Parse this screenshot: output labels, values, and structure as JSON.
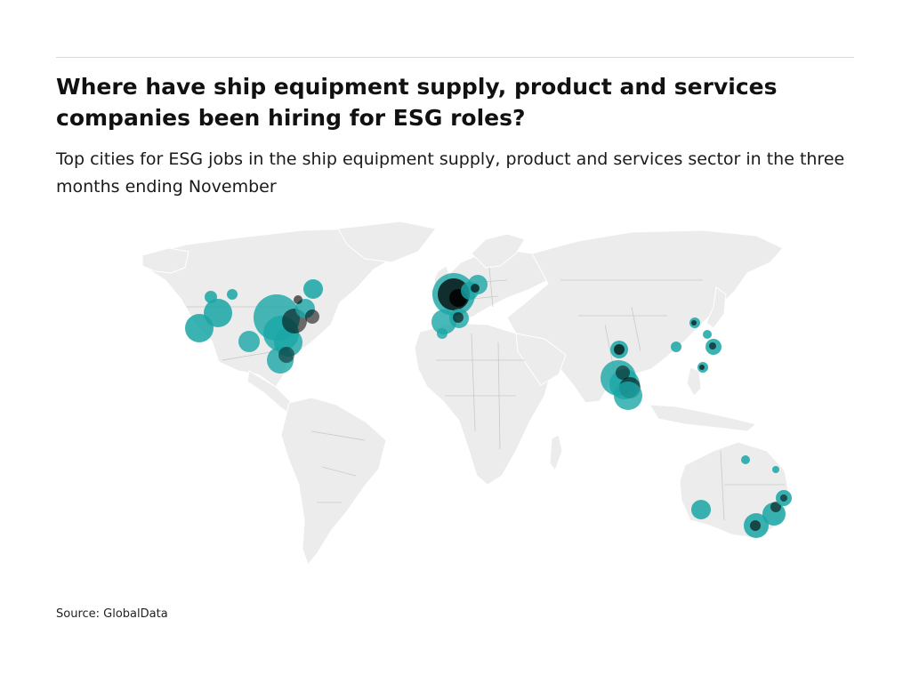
{
  "header": {
    "title": "Where have ship equipment supply, product and services companies been hiring for ESG roles?",
    "subtitle": "Top cities for ESG jobs in the ship equipment supply, product and services sector in the three months ending November"
  },
  "footer": {
    "source": "Source: GlobalData"
  },
  "map": {
    "type": "world bubble map",
    "land_color": "#ececec",
    "border_color": "#c9c9c9",
    "bubble_color": "#1aa6a6",
    "overlap_color": "#000000"
  }
}
